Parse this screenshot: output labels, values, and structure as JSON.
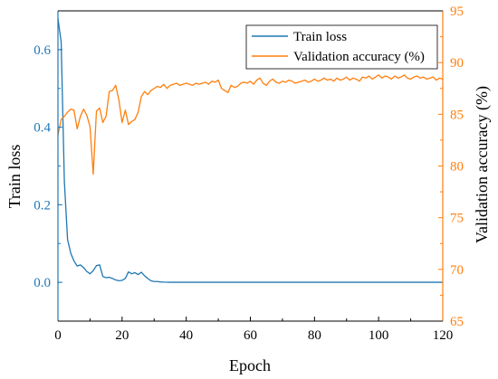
{
  "colors": {
    "train": "#1f77b4",
    "validation": "#ff7f0e",
    "axis": "#000000",
    "legend_border": "#000000"
  },
  "chart_data": {
    "type": "line",
    "title": "",
    "xlabel": "Epoch",
    "ylabel_left": "Train loss",
    "ylabel_right": "Validation accuracy (%)",
    "xlim": [
      0,
      120
    ],
    "ylim_left": [
      -0.1,
      0.7
    ],
    "ylim_right": [
      65,
      95
    ],
    "x_ticks": [
      0,
      20,
      40,
      60,
      80,
      100,
      120
    ],
    "x_tick_labels": [
      "0",
      "20",
      "40",
      "60",
      "80",
      "100",
      "120"
    ],
    "y_left_ticks": [
      0.0,
      0.2,
      0.4,
      0.6
    ],
    "y_left_tick_labels": [
      "0.0",
      "0.2",
      "0.4",
      "0.6"
    ],
    "y_right_ticks": [
      65,
      70,
      75,
      80,
      85,
      90,
      95
    ],
    "y_right_tick_labels": [
      "65",
      "70",
      "75",
      "80",
      "85",
      "90",
      "95"
    ],
    "grid": false,
    "legend_position": "top-right",
    "series": [
      {
        "name": "Train loss",
        "axis": "left",
        "x": [
          0,
          1,
          2,
          3,
          4,
          5,
          6,
          7,
          8,
          9,
          10,
          11,
          12,
          13,
          14,
          15,
          16,
          17,
          18,
          19,
          20,
          21,
          22,
          23,
          24,
          25,
          26,
          27,
          28,
          29,
          30,
          31,
          32,
          33,
          34,
          35,
          40,
          60,
          80,
          100,
          120
        ],
        "values": [
          0.68,
          0.62,
          0.26,
          0.11,
          0.075,
          0.055,
          0.042,
          0.045,
          0.038,
          0.028,
          0.022,
          0.03,
          0.043,
          0.045,
          0.015,
          0.012,
          0.013,
          0.01,
          0.006,
          0.004,
          0.005,
          0.01,
          0.027,
          0.022,
          0.025,
          0.02,
          0.026,
          0.017,
          0.01,
          0.004,
          0.002,
          0.002,
          0.001,
          0.0005,
          0.0003,
          0.0002,
          0.0001,
          0.0001,
          0.0001,
          0.0001,
          0.0001
        ]
      },
      {
        "name": "Validation accuracy (%)",
        "axis": "right",
        "x": [
          0,
          1,
          2,
          3,
          4,
          5,
          6,
          7,
          8,
          9,
          10,
          11,
          12,
          13,
          14,
          15,
          16,
          17,
          18,
          19,
          20,
          21,
          22,
          23,
          24,
          25,
          26,
          27,
          28,
          29,
          30,
          31,
          32,
          33,
          34,
          35,
          36,
          37,
          38,
          39,
          40,
          41,
          42,
          43,
          44,
          45,
          46,
          47,
          48,
          49,
          50,
          51,
          52,
          53,
          54,
          55,
          56,
          57,
          58,
          59,
          60,
          61,
          62,
          63,
          64,
          65,
          66,
          67,
          68,
          69,
          70,
          71,
          72,
          73,
          74,
          75,
          76,
          77,
          78,
          79,
          80,
          81,
          82,
          83,
          84,
          85,
          86,
          87,
          88,
          89,
          90,
          91,
          92,
          93,
          94,
          95,
          96,
          97,
          98,
          99,
          100,
          101,
          102,
          103,
          104,
          105,
          106,
          107,
          108,
          109,
          110,
          111,
          112,
          113,
          114,
          115,
          116,
          117,
          118,
          119,
          120
        ],
        "values": [
          83,
          84.5,
          84.8,
          85.2,
          85.5,
          85.4,
          83.6,
          84.8,
          85.5,
          84.9,
          83.8,
          79.2,
          85.3,
          85.6,
          84.2,
          84.8,
          87.2,
          87.3,
          87.8,
          86.4,
          84.2,
          85.4,
          84,
          84.3,
          84.5,
          85.2,
          86.7,
          87.2,
          86.9,
          87.3,
          87.5,
          87.7,
          87.6,
          87.9,
          87.5,
          87.8,
          87.9,
          88,
          87.8,
          87.9,
          88,
          87.9,
          87.8,
          88,
          87.9,
          88,
          88.1,
          87.9,
          88.2,
          88.1,
          88.3,
          87.5,
          87.3,
          87.1,
          87.8,
          87.6,
          87.7,
          88,
          88.1,
          88,
          88.2,
          87.9,
          88.3,
          88.5,
          88,
          87.8,
          88.2,
          88.4,
          88.1,
          88,
          88.2,
          88.1,
          88.3,
          88.2,
          88,
          88.1,
          88.2,
          88.3,
          88.1,
          88.2,
          88.4,
          88.2,
          88.3,
          88.5,
          88.3,
          88.4,
          88.2,
          88.5,
          88.3,
          88.4,
          88.6,
          88.3,
          88.5,
          88.4,
          88.2,
          88.6,
          88.5,
          88.7,
          88.4,
          88.6,
          88.8,
          88.5,
          88.7,
          88.6,
          88.4,
          88.7,
          88.5,
          88.6,
          88.8,
          88.5,
          88.4,
          88.6,
          88.7,
          88.5,
          88.6,
          88.4,
          88.5,
          88.6,
          88.3,
          88.5,
          88.4
        ]
      }
    ]
  }
}
